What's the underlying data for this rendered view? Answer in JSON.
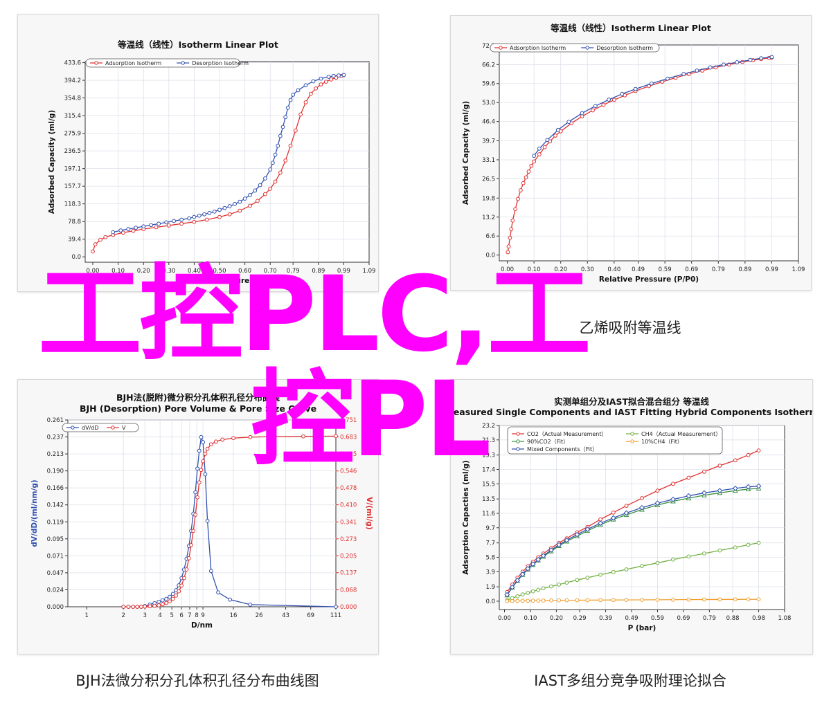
{
  "captions": {
    "bottom_left": "BJH法微分积分孔体积孔径分布曲线图",
    "bottom_right": "IAST多组分竞争吸附理论拟合",
    "top_right": "乙烯吸附等温线"
  },
  "watermark": {
    "line1": "工控PLC,工",
    "line2": "控PL",
    "color": "#ff00ff"
  },
  "chart_data": [
    {
      "type": "line",
      "title": "等温线（线性）Isotherm Linear Plot",
      "xlabel": "Relative Pressure (P/P0)",
      "ylabel": "Adsorbed Capacity (ml/g)",
      "xlim": [
        -0.03,
        1.09
      ],
      "ylim": [
        -12,
        436
      ],
      "xticks": [
        "0.00",
        "0.10",
        "0.20",
        "0.30",
        "0.40",
        "0.50",
        "0.60",
        "0.70",
        "0.79",
        "0.89",
        "0.99",
        "1.09"
      ],
      "yticks": [
        "0.0",
        "39.4",
        "78.8",
        "118.3",
        "157.7",
        "197.1",
        "236.5",
        "275.9",
        "315.4",
        "354.8",
        "394.2",
        "433.6"
      ],
      "grid": true,
      "legend": "top-left",
      "series": [
        {
          "name": "Adsorption Isotherm",
          "color": "#e03030",
          "x": [
            0.0,
            0.01,
            0.03,
            0.05,
            0.08,
            0.12,
            0.16,
            0.2,
            0.25,
            0.3,
            0.35,
            0.4,
            0.45,
            0.5,
            0.54,
            0.58,
            0.62,
            0.65,
            0.68,
            0.7,
            0.72,
            0.74,
            0.76,
            0.78,
            0.8,
            0.82,
            0.84,
            0.86,
            0.88,
            0.9,
            0.92,
            0.94,
            0.96,
            0.98,
            0.99
          ],
          "y": [
            12,
            28,
            38,
            44,
            49,
            54,
            58,
            62,
            66,
            70,
            74,
            78,
            83,
            89,
            95,
            103,
            114,
            125,
            140,
            152,
            168,
            188,
            215,
            248,
            282,
            318,
            345,
            364,
            376,
            385,
            391,
            396,
            400,
            404,
            406
          ]
        },
        {
          "name": "Desorption Isotherm",
          "color": "#3050b0",
          "x": [
            0.99,
            0.97,
            0.95,
            0.93,
            0.9,
            0.87,
            0.84,
            0.81,
            0.79,
            0.78,
            0.77,
            0.76,
            0.75,
            0.74,
            0.73,
            0.72,
            0.71,
            0.7,
            0.68,
            0.66,
            0.64,
            0.62,
            0.6,
            0.58,
            0.56,
            0.54,
            0.52,
            0.5,
            0.48,
            0.46,
            0.44,
            0.42,
            0.4,
            0.38,
            0.35,
            0.32,
            0.29,
            0.26,
            0.23,
            0.2,
            0.17,
            0.14,
            0.11,
            0.08
          ],
          "y": [
            406,
            405,
            404,
            402,
            398,
            392,
            383,
            372,
            362,
            350,
            333,
            312,
            290,
            270,
            248,
            228,
            210,
            195,
            175,
            160,
            148,
            138,
            130,
            123,
            118,
            113,
            109,
            105,
            101,
            98,
            95,
            92,
            89,
            86,
            83,
            80,
            77,
            74,
            71,
            68,
            65,
            62,
            59,
            55
          ]
        }
      ]
    },
    {
      "type": "line",
      "title": "等温线（线性）Isotherm Linear Plot",
      "xlabel": "Relative Pressure (P/P0)",
      "ylabel": "Adsorbed Capacity (ml/g)",
      "xlim": [
        -0.03,
        1.09
      ],
      "ylim": [
        -2,
        73
      ],
      "xticks": [
        "0.00",
        "0.10",
        "0.20",
        "0.30",
        "0.40",
        "0.49",
        "0.59",
        "0.69",
        "0.79",
        "0.89",
        "0.99",
        "1.09"
      ],
      "yticks": [
        "0.0",
        "6.6",
        "13.2",
        "19.8",
        "26.5",
        "33.1",
        "39.7",
        "46.4",
        "53.0",
        "59.6",
        "66.2",
        "72.8"
      ],
      "grid": true,
      "legend": "top-left",
      "series": [
        {
          "name": "Adsorption Isotherm",
          "color": "#e03030",
          "x": [
            0.002,
            0.005,
            0.01,
            0.015,
            0.02,
            0.03,
            0.04,
            0.05,
            0.06,
            0.07,
            0.08,
            0.09,
            0.1,
            0.12,
            0.14,
            0.16,
            0.18,
            0.2,
            0.24,
            0.28,
            0.32,
            0.36,
            0.4,
            0.44,
            0.48,
            0.53,
            0.58,
            0.63,
            0.68,
            0.73,
            0.78,
            0.83,
            0.88,
            0.92,
            0.95,
            0.98,
            0.99
          ],
          "y": [
            1.0,
            3.0,
            6.0,
            9.0,
            12.0,
            16.0,
            19.5,
            22.5,
            25.0,
            27.0,
            29.0,
            31.0,
            32.5,
            35.0,
            37.5,
            39.5,
            41.5,
            43.0,
            45.8,
            48.2,
            50.3,
            52.2,
            53.9,
            55.5,
            57.0,
            58.7,
            60.2,
            61.6,
            62.9,
            64.1,
            65.2,
            66.2,
            67.1,
            67.7,
            68.1,
            68.5,
            68.6
          ]
        },
        {
          "name": "Desorption Isotherm",
          "color": "#3050b0",
          "x": [
            0.99,
            0.95,
            0.91,
            0.86,
            0.81,
            0.76,
            0.71,
            0.66,
            0.6,
            0.54,
            0.48,
            0.43,
            0.38,
            0.33,
            0.28,
            0.23,
            0.19,
            0.15,
            0.12,
            0.1
          ],
          "y": [
            68.8,
            68.4,
            67.8,
            67.0,
            66.2,
            65.2,
            64.1,
            62.9,
            61.3,
            59.6,
            57.7,
            56.0,
            54.0,
            51.8,
            49.3,
            46.3,
            43.5,
            40.0,
            37.0,
            34.5
          ]
        }
      ]
    },
    {
      "type": "line",
      "title": "BJH法(脱附)微分积分孔体积孔径分布曲线",
      "subtitle": "BJH (Desorption) Pore Volume & Pore Size Curve",
      "xlabel": "D/nm",
      "ylabel": "dV/dD/(ml/nm/g)",
      "ylabel_right": "V/(ml/g)",
      "xscale": "log",
      "xlim": [
        0.7,
        111
      ],
      "ylim": [
        0,
        0.261
      ],
      "ylim_right": [
        0,
        0.751
      ],
      "xticks": [
        "1",
        "2",
        "3",
        "4",
        "5",
        "6",
        "7",
        "8",
        "9",
        "16",
        "26",
        "43",
        "69",
        "111"
      ],
      "yticks": [
        "0.000",
        "0.024",
        "0.047",
        "0.071",
        "0.095",
        "0.119",
        "0.142",
        "0.166",
        "0.190",
        "0.213",
        "0.237",
        "0.261"
      ],
      "yticks_right": [
        "0.000",
        "0.068",
        "0.137",
        "0.205",
        "0.273",
        "0.341",
        "0.410",
        "0.478",
        "0.546",
        "0.615",
        "0.683",
        "0.751"
      ],
      "grid": true,
      "legend": "top-left",
      "series": [
        {
          "name": "dV/dD",
          "color": "#3050b0",
          "axis": "left",
          "x": [
            2,
            2.2,
            2.4,
            2.6,
            2.8,
            3,
            3.3,
            3.6,
            3.9,
            4.2,
            4.5,
            4.8,
            5.1,
            5.4,
            5.7,
            6,
            6.3,
            6.6,
            6.9,
            7.2,
            7.5,
            7.8,
            8.1,
            8.4,
            8.7,
            9,
            9.4,
            9.8,
            10.5,
            12,
            15,
            22,
            111
          ],
          "y": [
            0,
            0,
            0,
            0,
            0,
            0.001,
            0.003,
            0.005,
            0.007,
            0.009,
            0.011,
            0.014,
            0.018,
            0.023,
            0.03,
            0.04,
            0.052,
            0.067,
            0.085,
            0.106,
            0.13,
            0.16,
            0.193,
            0.218,
            0.237,
            0.23,
            0.185,
            0.12,
            0.05,
            0.02,
            0.01,
            0.003,
            0
          ]
        },
        {
          "name": "V",
          "color": "#e03030",
          "axis": "right",
          "x": [
            2,
            2.2,
            2.4,
            2.6,
            2.8,
            3,
            3.3,
            3.6,
            3.9,
            4.2,
            4.5,
            4.8,
            5.1,
            5.4,
            5.7,
            6,
            6.3,
            6.6,
            6.9,
            7.2,
            7.5,
            7.8,
            8.1,
            8.4,
            8.7,
            9,
            9.4,
            9.8,
            10.5,
            11.5,
            13,
            16,
            22,
            35,
            60,
            111
          ],
          "y": [
            0,
            0,
            0,
            0,
            0,
            0.001,
            0.002,
            0.004,
            0.006,
            0.01,
            0.015,
            0.022,
            0.032,
            0.045,
            0.062,
            0.085,
            0.115,
            0.15,
            0.195,
            0.248,
            0.305,
            0.37,
            0.44,
            0.5,
            0.55,
            0.585,
            0.615,
            0.635,
            0.653,
            0.664,
            0.672,
            0.678,
            0.682,
            0.684,
            0.685,
            0.686
          ]
        }
      ]
    },
    {
      "type": "line",
      "title": "实测单组分及IAST拟合混合组分 等温线",
      "subtitle": "Measured Single Components and IAST Fitting Hybrid Components Isotherm",
      "xlabel": "P (bar)",
      "ylabel": "Adsorption Capacties (ml/g)",
      "xlim": [
        -0.02,
        1.08
      ],
      "ylim": [
        -1.1,
        23.2
      ],
      "xticks": [
        "0.00",
        "0.10",
        "0.20",
        "0.29",
        "0.39",
        "0.49",
        "0.59",
        "0.69",
        "0.79",
        "0.88",
        "0.98",
        "1.08"
      ],
      "yticks": [
        "0.0",
        "1.9",
        "3.9",
        "5.8",
        "7.7",
        "9.7",
        "11.6",
        "13.5",
        "15.5",
        "17.4",
        "19.3",
        "21.3",
        "23.2"
      ],
      "grid": true,
      "legend": "top-left",
      "series": [
        {
          "name": "CO2（Actual Measurement）",
          "color": "#e03030",
          "marker": "circle",
          "x": [
            0.01,
            0.03,
            0.05,
            0.07,
            0.09,
            0.11,
            0.13,
            0.15,
            0.18,
            0.21,
            0.24,
            0.28,
            0.32,
            0.37,
            0.42,
            0.47,
            0.53,
            0.59,
            0.65,
            0.71,
            0.77,
            0.83,
            0.89,
            0.94,
            0.98
          ],
          "y": [
            1.2,
            2.2,
            3.1,
            3.9,
            4.6,
            5.2,
            5.8,
            6.3,
            7.0,
            7.7,
            8.3,
            9.1,
            9.8,
            10.8,
            11.7,
            12.6,
            13.6,
            14.6,
            15.5,
            16.3,
            17.1,
            17.9,
            18.6,
            19.3,
            19.9
          ]
        },
        {
          "name": "CH4（Actual Measurement）",
          "color": "#70b040",
          "marker": "circle",
          "x": [
            0.01,
            0.03,
            0.05,
            0.07,
            0.09,
            0.11,
            0.13,
            0.15,
            0.18,
            0.21,
            0.24,
            0.28,
            0.32,
            0.37,
            0.42,
            0.47,
            0.53,
            0.59,
            0.65,
            0.71,
            0.77,
            0.83,
            0.89,
            0.94,
            0.98
          ],
          "y": [
            0.15,
            0.4,
            0.65,
            0.9,
            1.1,
            1.3,
            1.5,
            1.7,
            1.95,
            2.2,
            2.45,
            2.8,
            3.1,
            3.5,
            3.85,
            4.2,
            4.65,
            5.05,
            5.5,
            5.9,
            6.3,
            6.7,
            7.1,
            7.45,
            7.7
          ]
        },
        {
          "name": "90%CO2（Fit）",
          "color": "#3a9040",
          "marker": "triangle",
          "x": [
            0.01,
            0.03,
            0.05,
            0.07,
            0.09,
            0.11,
            0.13,
            0.15,
            0.18,
            0.21,
            0.24,
            0.28,
            0.32,
            0.37,
            0.42,
            0.47,
            0.53,
            0.59,
            0.65,
            0.71,
            0.77,
            0.83,
            0.89,
            0.94,
            0.98
          ],
          "y": [
            0.8,
            1.8,
            2.7,
            3.5,
            4.2,
            4.8,
            5.4,
            5.9,
            6.6,
            7.3,
            7.9,
            8.6,
            9.3,
            10.1,
            10.8,
            11.4,
            12.1,
            12.7,
            13.2,
            13.6,
            14.0,
            14.3,
            14.6,
            14.8,
            14.9
          ]
        },
        {
          "name": "10%CH4（Fit）",
          "color": "#f0a030",
          "marker": "circle",
          "x": [
            0.01,
            0.03,
            0.05,
            0.07,
            0.09,
            0.11,
            0.13,
            0.15,
            0.18,
            0.21,
            0.24,
            0.28,
            0.32,
            0.37,
            0.42,
            0.47,
            0.53,
            0.59,
            0.65,
            0.71,
            0.77,
            0.83,
            0.89,
            0.94,
            0.98
          ],
          "y": [
            0.01,
            0.02,
            0.04,
            0.05,
            0.06,
            0.07,
            0.08,
            0.09,
            0.1,
            0.11,
            0.12,
            0.13,
            0.14,
            0.15,
            0.16,
            0.17,
            0.18,
            0.19,
            0.2,
            0.21,
            0.22,
            0.23,
            0.24,
            0.25,
            0.25
          ]
        },
        {
          "name": "Mixed Components（Fit）",
          "color": "#3050b0",
          "marker": "diamond",
          "x": [
            0.01,
            0.03,
            0.05,
            0.07,
            0.09,
            0.11,
            0.13,
            0.15,
            0.18,
            0.21,
            0.24,
            0.28,
            0.32,
            0.37,
            0.42,
            0.47,
            0.53,
            0.59,
            0.65,
            0.71,
            0.77,
            0.83,
            0.89,
            0.94,
            0.98
          ],
          "y": [
            0.85,
            1.85,
            2.75,
            3.55,
            4.3,
            4.9,
            5.5,
            6.0,
            6.75,
            7.45,
            8.05,
            8.8,
            9.5,
            10.3,
            11.0,
            11.65,
            12.35,
            12.95,
            13.45,
            13.9,
            14.3,
            14.6,
            14.9,
            15.1,
            15.2
          ]
        }
      ]
    }
  ]
}
